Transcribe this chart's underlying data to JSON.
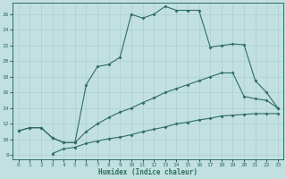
{
  "title": "",
  "xlabel": "Humidex (Indice chaleur)",
  "bg_color": "#c2e0e0",
  "grid_color": "#aacfcf",
  "line_color": "#2e6e60",
  "spine_color": "#2e6e60",
  "xlim": [
    -0.5,
    23.5
  ],
  "ylim": [
    7.5,
    27.5
  ],
  "xticks": [
    0,
    1,
    2,
    3,
    4,
    5,
    6,
    7,
    8,
    9,
    10,
    11,
    12,
    13,
    14,
    15,
    16,
    17,
    18,
    19,
    20,
    21,
    22,
    23
  ],
  "yticks": [
    8,
    10,
    12,
    14,
    16,
    18,
    20,
    22,
    24,
    26
  ],
  "line1_x": [
    0,
    1,
    2,
    3,
    4,
    5,
    6,
    7,
    8,
    9,
    10,
    11,
    12,
    13,
    14,
    15,
    16,
    17,
    18,
    19,
    20,
    21,
    22,
    23
  ],
  "line1_y": [
    11.1,
    11.5,
    11.5,
    10.2,
    9.6,
    9.6,
    17.0,
    19.3,
    19.6,
    20.5,
    26.0,
    25.5,
    26.0,
    27.0,
    26.5,
    26.5,
    26.5,
    21.8,
    22.0,
    22.2,
    22.1,
    17.5,
    16.0,
    14.0
  ],
  "line2_x": [
    0,
    1,
    2,
    3,
    4,
    5,
    6,
    7,
    8,
    9,
    10,
    11,
    12,
    13,
    14,
    15,
    16,
    17,
    18,
    19,
    20,
    21,
    22,
    23
  ],
  "line2_y": [
    11.1,
    11.5,
    11.5,
    10.2,
    9.6,
    9.6,
    11.0,
    12.0,
    12.8,
    13.5,
    14.0,
    14.7,
    15.3,
    16.0,
    16.5,
    17.0,
    17.5,
    18.0,
    18.5,
    18.5,
    15.5,
    15.2,
    15.0,
    14.0
  ],
  "line3_x": [
    3,
    4,
    5,
    6,
    7,
    8,
    9,
    10,
    11,
    12,
    13,
    14,
    15,
    16,
    17,
    18,
    19,
    20,
    21,
    22,
    23
  ],
  "line3_y": [
    8.2,
    8.8,
    9.0,
    9.5,
    9.8,
    10.1,
    10.3,
    10.6,
    11.0,
    11.3,
    11.6,
    12.0,
    12.2,
    12.5,
    12.7,
    13.0,
    13.1,
    13.2,
    13.3,
    13.3,
    13.3
  ]
}
